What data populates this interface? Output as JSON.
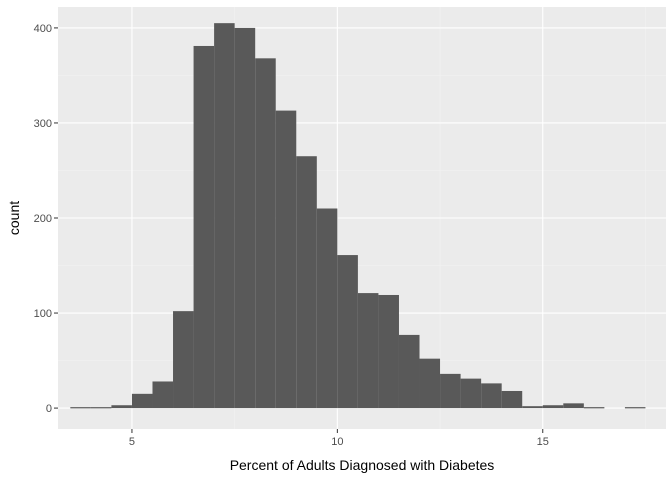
{
  "chart_data": {
    "type": "bar",
    "subtype": "histogram",
    "xlabel": "Percent of Adults Diagnosed with Diabetes",
    "ylabel": "count",
    "xlim": [
      3.2,
      18.0
    ],
    "ylim": [
      -22,
      422
    ],
    "x_ticks": [
      5,
      10,
      15
    ],
    "y_ticks": [
      0,
      100,
      200,
      300,
      400
    ],
    "grid": true,
    "bin_width": 0.5,
    "bins": [
      {
        "x0": 3.5,
        "x1": 4.0,
        "count": 1
      },
      {
        "x0": 4.0,
        "x1": 4.5,
        "count": 1
      },
      {
        "x0": 4.5,
        "x1": 5.0,
        "count": 3
      },
      {
        "x0": 5.0,
        "x1": 5.5,
        "count": 15
      },
      {
        "x0": 5.5,
        "x1": 6.0,
        "count": 28
      },
      {
        "x0": 6.0,
        "x1": 6.5,
        "count": 102
      },
      {
        "x0": 6.5,
        "x1": 7.0,
        "count": 381
      },
      {
        "x0": 7.0,
        "x1": 7.5,
        "count": 405
      },
      {
        "x0": 7.5,
        "x1": 8.0,
        "count": 400
      },
      {
        "x0": 8.0,
        "x1": 8.5,
        "count": 368
      },
      {
        "x0": 8.5,
        "x1": 9.0,
        "count": 313
      },
      {
        "x0": 9.0,
        "x1": 9.5,
        "count": 265
      },
      {
        "x0": 9.5,
        "x1": 10.0,
        "count": 210
      },
      {
        "x0": 10.0,
        "x1": 10.5,
        "count": 161
      },
      {
        "x0": 10.5,
        "x1": 11.0,
        "count": 121
      },
      {
        "x0": 11.0,
        "x1": 11.5,
        "count": 119
      },
      {
        "x0": 11.5,
        "x1": 12.0,
        "count": 77
      },
      {
        "x0": 12.0,
        "x1": 12.5,
        "count": 52
      },
      {
        "x0": 12.5,
        "x1": 13.0,
        "count": 36
      },
      {
        "x0": 13.0,
        "x1": 13.5,
        "count": 31
      },
      {
        "x0": 13.5,
        "x1": 14.0,
        "count": 26
      },
      {
        "x0": 14.0,
        "x1": 14.5,
        "count": 18
      },
      {
        "x0": 14.5,
        "x1": 15.0,
        "count": 2
      },
      {
        "x0": 15.0,
        "x1": 15.5,
        "count": 3
      },
      {
        "x0": 15.5,
        "x1": 16.0,
        "count": 5
      },
      {
        "x0": 16.0,
        "x1": 16.5,
        "count": 1
      },
      {
        "x0": 16.5,
        "x1": 17.0,
        "count": 0
      },
      {
        "x0": 17.0,
        "x1": 17.5,
        "count": 1
      }
    ],
    "colors": {
      "bar": "#595959",
      "panel": "#ebebeb",
      "grid_major": "#ffffff",
      "grid_minor": "#f2f2f2",
      "tick": "#333333"
    }
  }
}
